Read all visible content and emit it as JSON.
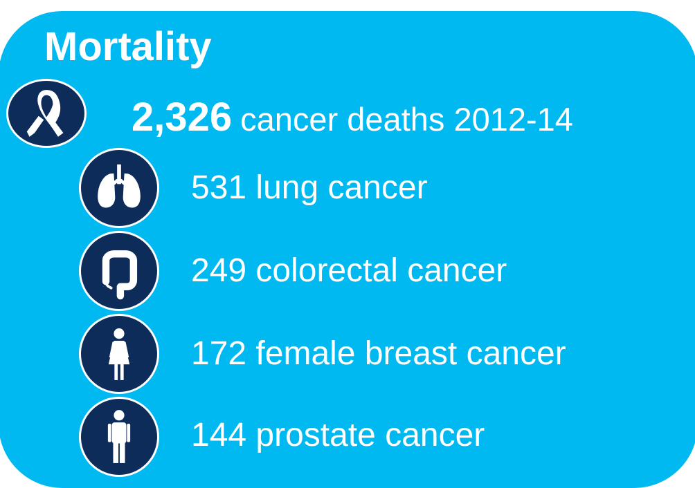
{
  "title": "Mortality",
  "headline": {
    "value": "2,326",
    "label": "cancer deaths 2012-14"
  },
  "items": [
    {
      "label": "531 lung cancer",
      "icon": "lungs-icon"
    },
    {
      "label": "249 colorectal cancer",
      "icon": "colon-icon"
    },
    {
      "label": "172 female breast cancer",
      "icon": "female-figure-icon"
    },
    {
      "label": "144 prostate cancer",
      "icon": "male-figure-icon"
    }
  ],
  "colors": {
    "panel": "#00b9f0",
    "icon_circle": "#0d2c5a",
    "text": "#ffffff"
  }
}
